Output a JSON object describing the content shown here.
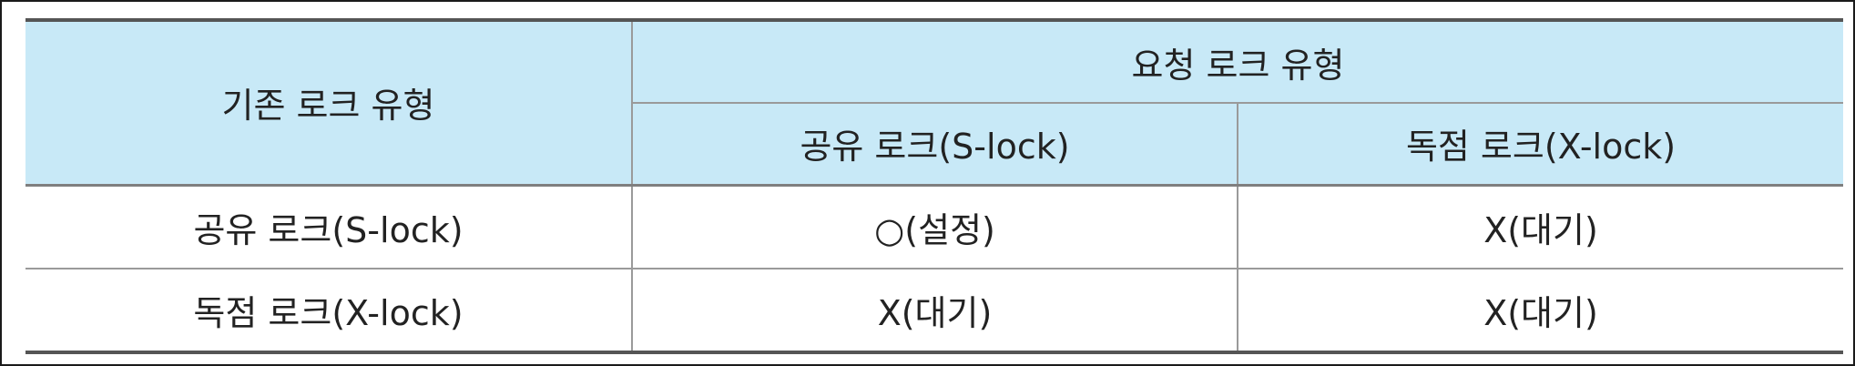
{
  "table": {
    "row_header_title": "기존 로크 유형",
    "column_group_title": "요청 로크 유형",
    "columns": [
      "공유 로크(S-lock)",
      "독점 로크(X-lock)"
    ],
    "rows": [
      {
        "label": "공유 로크(S-lock)",
        "cells": [
          "○(설정)",
          "X(대기)"
        ]
      },
      {
        "label": "독점 로크(X-lock)",
        "cells": [
          "X(대기)",
          "X(대기)"
        ]
      }
    ],
    "colors": {
      "header_background": "#c8e9f7",
      "body_background": "#ffffff",
      "rule_color": "#555555"
    }
  }
}
